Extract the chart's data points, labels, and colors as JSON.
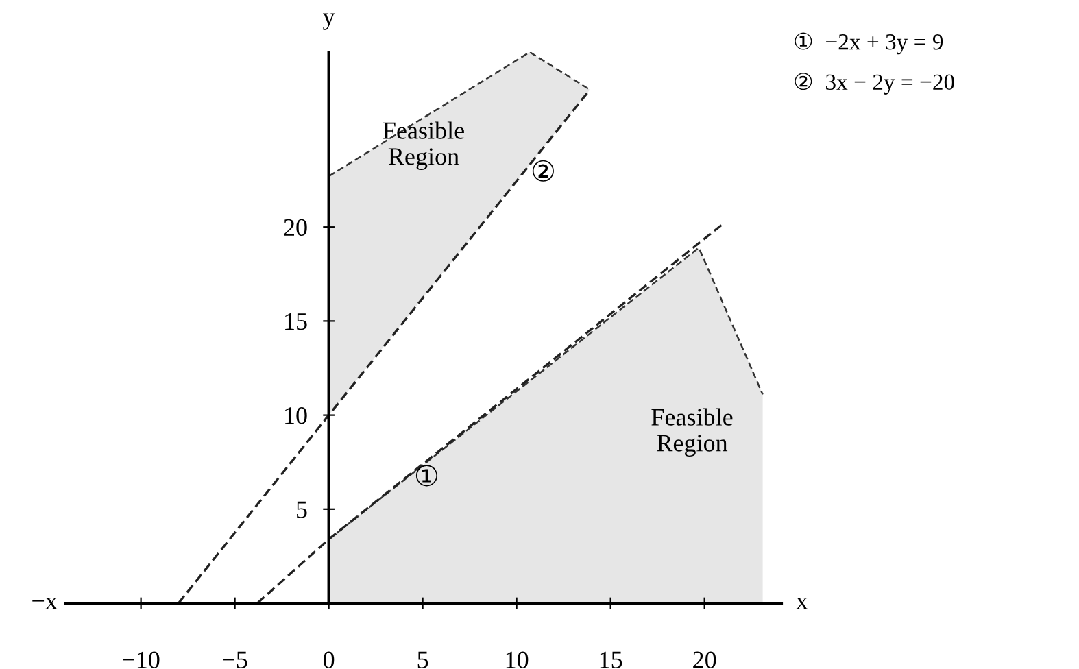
{
  "chart_data": {
    "type": "line",
    "xlabel": "x",
    "ylabel": "y",
    "line_style": "dashed",
    "marker": "none",
    "grid": false,
    "xlim": [
      -14,
      24.1
    ],
    "ylim": [
      0,
      29.3
    ],
    "xticks": [
      -10,
      -5,
      0,
      5,
      10,
      15,
      20
    ],
    "yticks": [
      5,
      10,
      15,
      20
    ],
    "series": [
      {
        "color": "#222222",
        "x": [
          -3.8,
          0,
          20.9
        ],
        "values": [
          0,
          3.4,
          20.1
        ]
      },
      {
        "color": "#222222",
        "x": [
          -8,
          0,
          13.9
        ],
        "values": [
          0,
          10,
          27.3
        ]
      },
      {
        "type": "area",
        "color": "#e6e6e6",
        "x": [
          0,
          10.7,
          13.9
        ],
        "values": [
          22.7,
          29.3,
          27.3
        ]
      },
      {
        "type": "area",
        "color": "#e6e6e6",
        "x": [
          0,
          19.7,
          23.1
        ],
        "values": [
          3.4,
          18.9,
          11.1
        ]
      }
    ],
    "annotations": [
      "①  −2x + 3y = 9",
      "②  3x − 2y = −20",
      "Feasible\nRegion",
      "Feasible\nRegion",
      "−x",
      {
        "text": "①",
        "x": 4.2,
        "y": 6.8
      },
      {
        "text": "②",
        "x": 10.4,
        "y": 23
      }
    ]
  }
}
